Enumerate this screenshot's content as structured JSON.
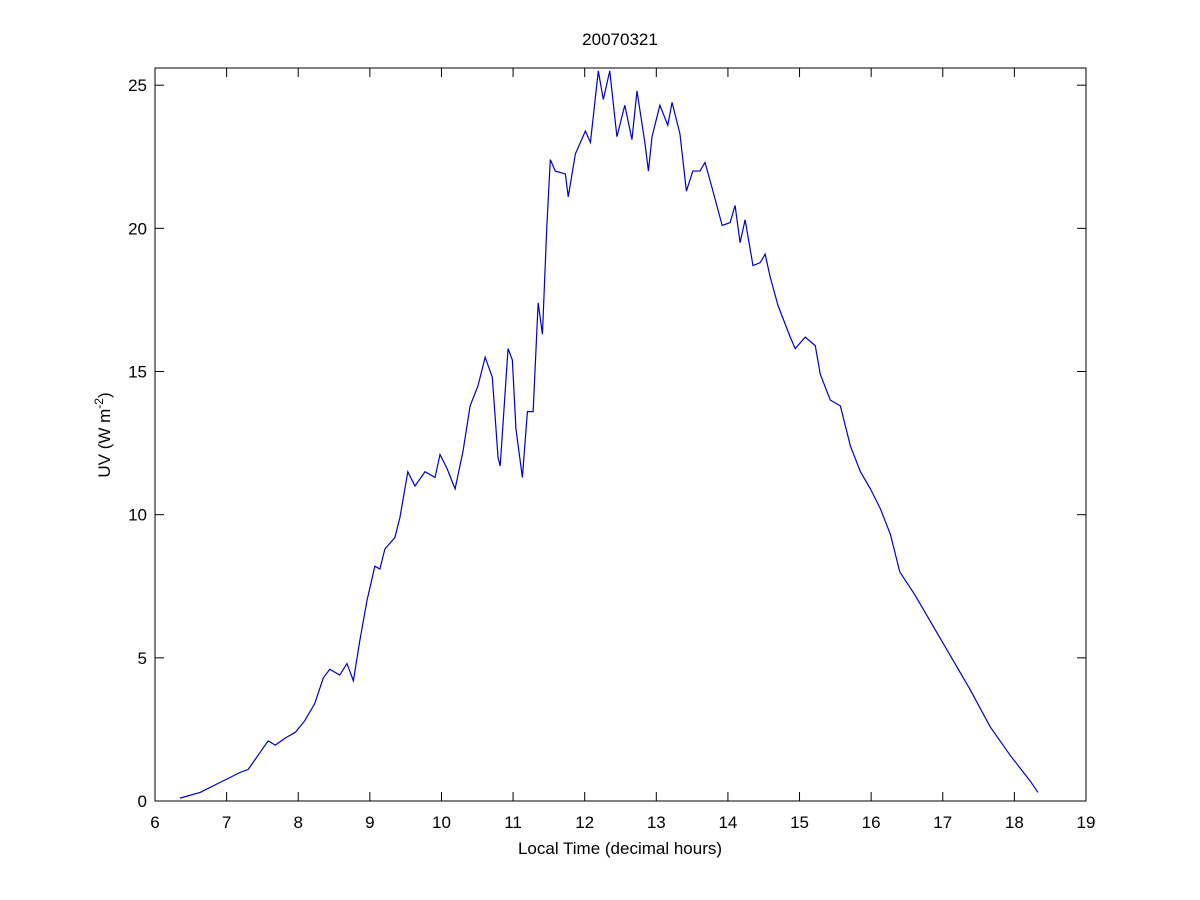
{
  "chart_data": {
    "type": "line",
    "title": "20070321",
    "x_label": "Local Time (decimal hours)",
    "y_label": {
      "text": "UV (W m",
      "superscript": "-2",
      "suffix": ")"
    },
    "xlim": [
      6,
      19
    ],
    "xticks": [
      6,
      7,
      8,
      9,
      10,
      11,
      12,
      13,
      14,
      15,
      16,
      17,
      18,
      19
    ],
    "ylim": [
      0,
      25.6
    ],
    "yticks": [
      0,
      5,
      10,
      15,
      20,
      25
    ],
    "grid": false,
    "x": [
      6.35,
      6.63,
      6.91,
      7.19,
      7.3,
      7.44,
      7.58,
      7.68,
      7.82,
      7.96,
      8.09,
      8.23,
      8.35,
      8.44,
      8.58,
      8.68,
      8.77,
      8.86,
      8.96,
      9.07,
      9.14,
      9.21,
      9.35,
      9.42,
      9.53,
      9.63,
      9.77,
      9.91,
      9.98,
      10.08,
      10.19,
      10.3,
      10.4,
      10.51,
      10.61,
      10.71,
      10.79,
      10.82,
      10.93,
      10.99,
      11.04,
      11.13,
      11.2,
      11.28,
      11.35,
      11.41,
      11.47,
      11.52,
      11.59,
      11.73,
      11.77,
      11.87,
      12.01,
      12.08,
      12.19,
      12.26,
      12.35,
      12.45,
      12.56,
      12.66,
      12.73,
      12.84,
      12.89,
      12.94,
      13.05,
      13.16,
      13.22,
      13.33,
      13.42,
      13.51,
      13.61,
      13.68,
      13.78,
      13.92,
      14.03,
      14.1,
      14.17,
      14.24,
      14.35,
      14.45,
      14.52,
      14.59,
      14.7,
      14.87,
      14.94,
      15.08,
      15.22,
      15.29,
      15.43,
      15.57,
      15.71,
      15.85,
      15.99,
      16.13,
      16.27,
      16.4,
      16.61,
      16.82,
      17.1,
      17.38,
      17.66,
      17.94,
      18.22,
      18.33
    ],
    "series": [
      {
        "name": "UV",
        "color": "#0000c8",
        "values": [
          0.1,
          0.3,
          0.65,
          1.0,
          1.1,
          1.6,
          2.1,
          1.95,
          2.2,
          2.4,
          2.8,
          3.4,
          4.3,
          4.6,
          4.4,
          4.8,
          4.2,
          5.6,
          7.0,
          8.2,
          8.1,
          8.8,
          9.2,
          9.9,
          11.5,
          11.0,
          11.5,
          11.3,
          12.1,
          11.6,
          10.9,
          12.2,
          13.8,
          14.5,
          15.5,
          14.8,
          12.0,
          11.7,
          15.8,
          15.4,
          13.0,
          11.3,
          13.6,
          13.6,
          17.4,
          16.3,
          20.0,
          22.4,
          22.0,
          21.9,
          21.1,
          22.6,
          23.4,
          23.0,
          25.5,
          24.5,
          25.5,
          23.2,
          24.3,
          23.1,
          24.8,
          23.0,
          22.0,
          23.2,
          24.3,
          23.6,
          24.4,
          23.3,
          21.3,
          22.0,
          22.0,
          22.3,
          21.4,
          20.1,
          20.2,
          20.8,
          19.5,
          20.3,
          18.7,
          18.8,
          19.1,
          18.3,
          17.3,
          16.2,
          15.8,
          16.2,
          15.9,
          14.9,
          14.0,
          13.8,
          12.4,
          11.5,
          10.9,
          10.2,
          9.3,
          8.0,
          7.2,
          6.3,
          5.1,
          3.9,
          2.6,
          1.6,
          0.7,
          0.3
        ]
      }
    ]
  }
}
